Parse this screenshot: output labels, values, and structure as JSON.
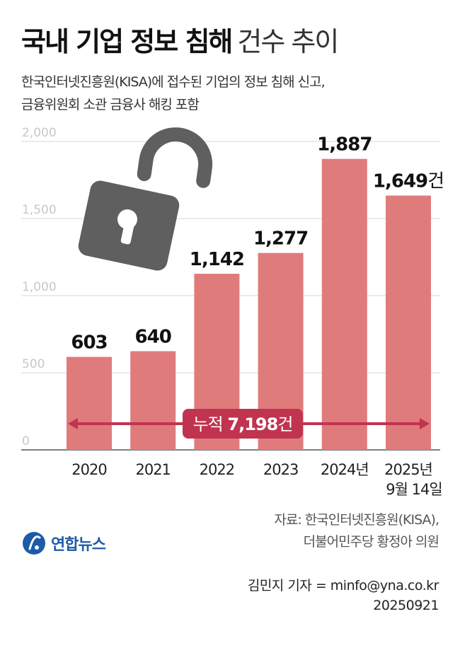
{
  "header": {
    "title_bold": "국내 기업 정보 침해",
    "title_light": "건수 추이",
    "subtitle_line1": "한국인터넷진흥원(KISA)에 접수된 기업의 정보 침해 신고,",
    "subtitle_line2": "금융위원회 소관 금융사 해킹 포함"
  },
  "chart_data": {
    "type": "bar",
    "categories": [
      "2020",
      "2021",
      "2022",
      "2023",
      "2024년",
      "2025년"
    ],
    "category_sublabels": [
      "",
      "",
      "",
      "",
      "",
      "9월 14일"
    ],
    "values": [
      603,
      640,
      1142,
      1277,
      1887,
      1649
    ],
    "value_labels": [
      "603",
      "640",
      "1,142",
      "1,277",
      "1,887",
      "1,649"
    ],
    "value_unit": "건",
    "ylim": [
      0,
      2000
    ],
    "yticks": [
      0,
      500,
      1000,
      1500,
      2000
    ],
    "ytick_labels": [
      "0",
      "500",
      "1,000",
      "1,500",
      "2,000"
    ],
    "grid": true,
    "bar_color": "#e07b7b",
    "annotation": {
      "prefix": "누적",
      "value": "7,198",
      "unit": "건",
      "color": "#c0344f"
    }
  },
  "icons": {
    "padlock": "open-padlock-icon",
    "logo": "yonhap-logo-icon"
  },
  "footer": {
    "source_line1": "자료: 한국인터넷진흥원(KISA),",
    "source_line2": "더불어민주당 황정아 의원",
    "logo_text": "연합뉴스",
    "byline": "김민지 기자 = minfo@yna.co.kr",
    "date": "20250921"
  }
}
